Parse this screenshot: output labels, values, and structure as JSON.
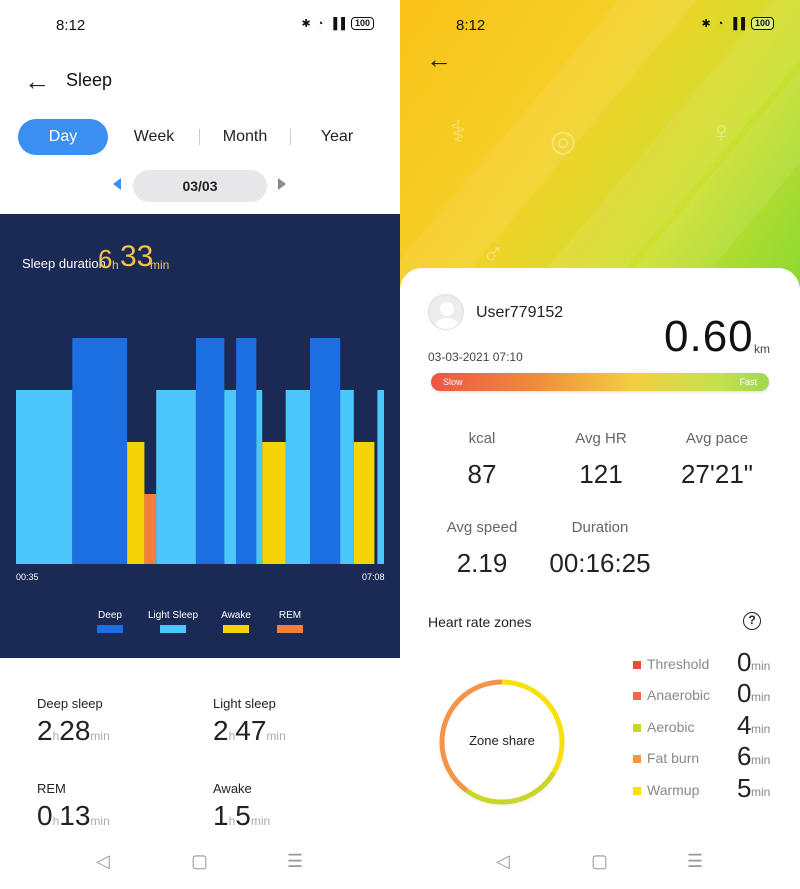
{
  "left": {
    "status": {
      "time": "8:12",
      "battery": "100"
    },
    "title": "Sleep",
    "tabs": [
      {
        "label": "Day",
        "active": true
      },
      {
        "label": "Week",
        "active": false
      },
      {
        "label": "Month",
        "active": false
      },
      {
        "label": "Year",
        "active": false
      }
    ],
    "date": "03/03",
    "sleep_duration": {
      "label": "Sleep duration",
      "hours": "6",
      "h_unit": "h",
      "minutes": "33",
      "min_unit": "min"
    },
    "axis": {
      "start": "00:35",
      "end": "07:08"
    },
    "legend": [
      {
        "label": "Deep",
        "color": "#1b6fe0"
      },
      {
        "label": "Light Sleep",
        "color": "#4cc7fb"
      },
      {
        "label": "Awake",
        "color": "#f5d306"
      },
      {
        "label": "REM",
        "color": "#f37f3f"
      }
    ],
    "stats": {
      "deep": {
        "label": "Deep sleep",
        "h": "2",
        "h_unit": "h",
        "m": "28",
        "m_unit": "min"
      },
      "light": {
        "label": "Light sleep",
        "h": "2",
        "h_unit": "h",
        "m": "47",
        "m_unit": "min"
      },
      "rem": {
        "label": "REM",
        "h": "0",
        "h_unit": "h",
        "m": "13",
        "m_unit": "min"
      },
      "awake": {
        "label": "Awake",
        "h": "1",
        "h_unit": "h",
        "m": "5",
        "m_unit": "min"
      }
    }
  },
  "chart_data": {
    "type": "bar",
    "stages": [
      "Light Sleep",
      "Deep",
      "Awake",
      "REM"
    ],
    "x_start": "00:35",
    "x_end": "07:08",
    "segments": [
      {
        "stage": "Light Sleep",
        "start": 0.0,
        "end": 0.153
      },
      {
        "stage": "Deep",
        "start": 0.153,
        "end": 0.302
      },
      {
        "stage": "Awake",
        "start": 0.302,
        "end": 0.349
      },
      {
        "stage": "REM",
        "start": 0.349,
        "end": 0.381
      },
      {
        "stage": "Light Sleep",
        "start": 0.381,
        "end": 0.489
      },
      {
        "stage": "Deep",
        "start": 0.489,
        "end": 0.566
      },
      {
        "stage": "Light Sleep",
        "start": 0.566,
        "end": 0.598
      },
      {
        "stage": "Deep",
        "start": 0.598,
        "end": 0.653
      },
      {
        "stage": "Light Sleep",
        "start": 0.653,
        "end": 0.669
      },
      {
        "stage": "Awake",
        "start": 0.669,
        "end": 0.733
      },
      {
        "stage": "Light Sleep",
        "start": 0.733,
        "end": 0.799
      },
      {
        "stage": "Deep",
        "start": 0.799,
        "end": 0.881
      },
      {
        "stage": "Light Sleep",
        "start": 0.881,
        "end": 0.918
      },
      {
        "stage": "Awake",
        "start": 0.918,
        "end": 0.974
      },
      {
        "stage": "Light Sleep",
        "start": 0.982,
        "end": 1.0
      }
    ],
    "colors": {
      "Deep": "#1b6fe0",
      "Light Sleep": "#4cc7fb",
      "Awake": "#f5d306",
      "REM": "#f37f3f"
    }
  },
  "right": {
    "status": {
      "time": "8:12",
      "battery": "100"
    },
    "user": "User779152",
    "datetime": "03-03-2021 07:10",
    "distance": {
      "value": "0.60",
      "unit": "km"
    },
    "pace_scale": {
      "slow": "Slow",
      "fast": "Fast"
    },
    "metrics": [
      {
        "label": "kcal",
        "value": "87"
      },
      {
        "label": "Avg HR",
        "value": "121"
      },
      {
        "label": "Avg pace",
        "value": "27'21\""
      },
      {
        "label": "Avg speed",
        "value": "2.19"
      },
      {
        "label": "Duration",
        "value": "00:16:25"
      }
    ],
    "hr_zones_title": "Heart rate zones",
    "help": "?",
    "zone_share_label": "Zone share",
    "zones": [
      {
        "name": "Threshold",
        "value": "0",
        "unit": "min",
        "color": "#ee4c3b"
      },
      {
        "name": "Anaerobic",
        "value": "0",
        "unit": "min",
        "color": "#f06a4a"
      },
      {
        "name": "Aerobic",
        "value": "4",
        "unit": "min",
        "color": "#c9d627"
      },
      {
        "name": "Fat burn",
        "value": "6",
        "unit": "min",
        "color": "#f39548"
      },
      {
        "name": "Warmup",
        "value": "5",
        "unit": "min",
        "color": "#f7e00c"
      }
    ]
  }
}
